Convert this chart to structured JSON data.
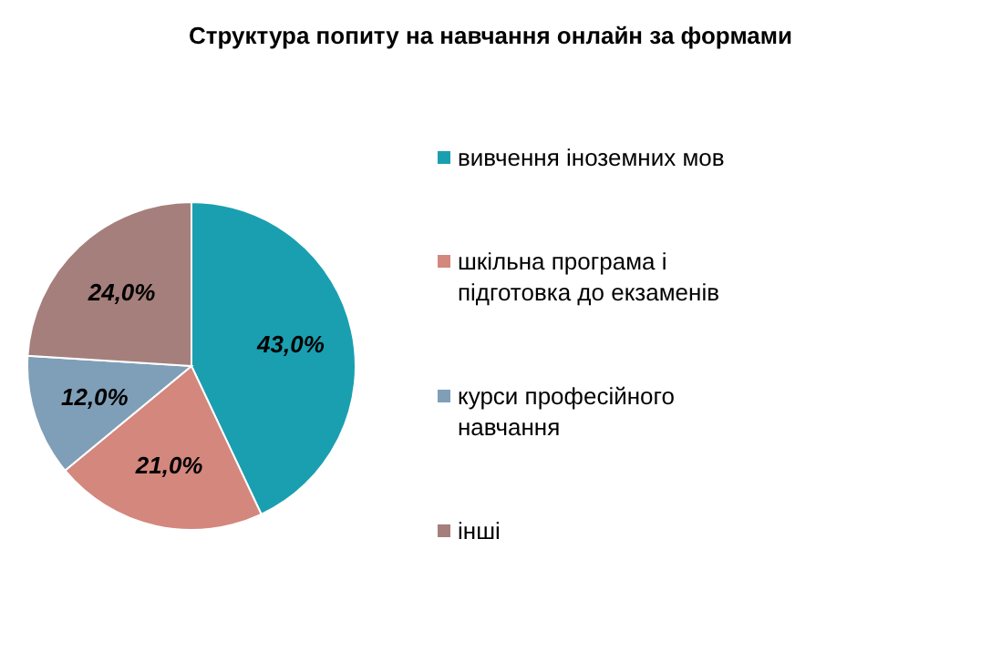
{
  "chart_data": {
    "type": "pie",
    "title": "Структура попиту на навчання онлайн за формами",
    "categories": [
      "вивчення іноземних мов",
      "шкільна програма і підготовка до екзаменів",
      "курси професійного навчання",
      "інші"
    ],
    "values": [
      43,
      21,
      12,
      24
    ],
    "colors": [
      "#1a9fb0",
      "#d4877d",
      "#7f9fb8",
      "#a57f7b"
    ],
    "value_labels": [
      "43,0%",
      "21,0%",
      "12,0%",
      "24,0%"
    ],
    "legend": "right"
  }
}
